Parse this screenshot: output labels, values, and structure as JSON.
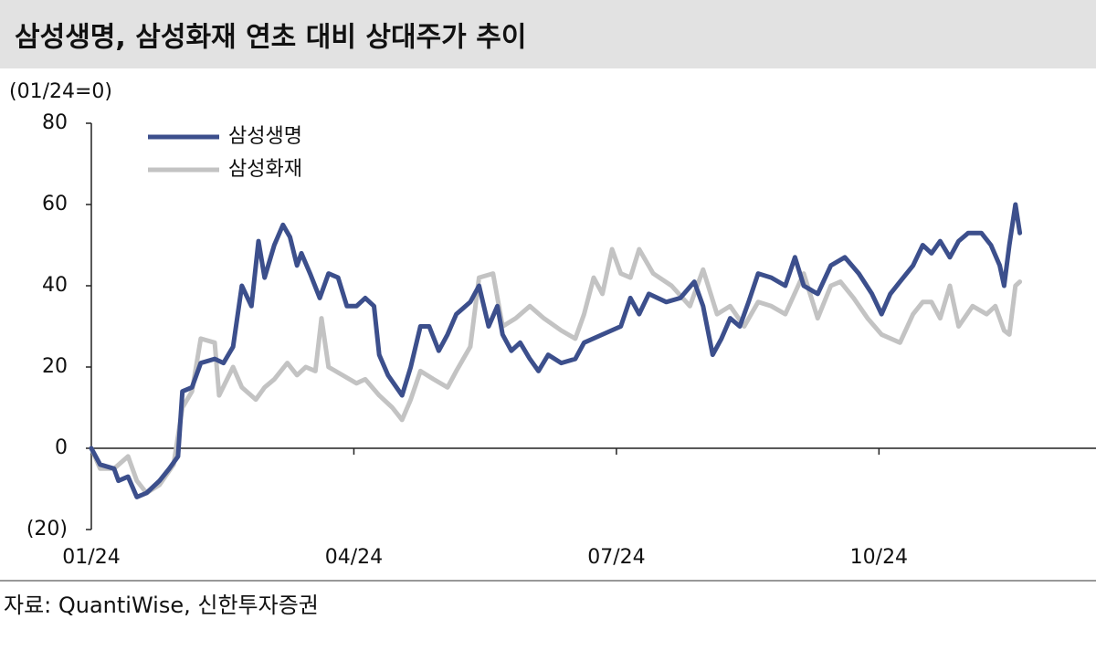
{
  "chart_data": {
    "type": "line",
    "title": "삼성생명, 삼성화재 연초 대비 상대주가 추이",
    "y_label": "(01/24=0)",
    "source": "자료: QuantiWise, 신한투자증권",
    "legend": "upper left",
    "xlim": [
      0,
      11.48
    ],
    "xticks": [
      {
        "value": 0,
        "label": "01/24"
      },
      {
        "value": 3,
        "label": "04/24"
      },
      {
        "value": 6,
        "label": "07/24"
      },
      {
        "value": 9,
        "label": "10/24"
      }
    ],
    "ylim": [
      -20,
      80
    ],
    "yticks": [
      {
        "value": -20,
        "label": "(20)"
      },
      0,
      20,
      40,
      60,
      80
    ],
    "series": [
      {
        "name": "삼성생명",
        "color": "#3c4f8c",
        "x": [
          0,
          0.1,
          0.26,
          0.31,
          0.42,
          0.52,
          0.63,
          0.78,
          0.89,
          0.99,
          1.04,
          1.15,
          1.25,
          1.41,
          1.51,
          1.62,
          1.72,
          1.83,
          1.91,
          1.98,
          2.09,
          2.19,
          2.27,
          2.35,
          2.4,
          2.5,
          2.61,
          2.71,
          2.82,
          2.92,
          3.03,
          3.13,
          3.23,
          3.29,
          3.39,
          3.55,
          3.65,
          3.76,
          3.86,
          3.97,
          4.07,
          4.17,
          4.33,
          4.43,
          4.54,
          4.64,
          4.7,
          4.8,
          4.9,
          5.01,
          5.11,
          5.22,
          5.37,
          5.53,
          5.63,
          5.84,
          6.05,
          6.16,
          6.26,
          6.37,
          6.57,
          6.73,
          6.89,
          6.99,
          7.1,
          7.2,
          7.3,
          7.41,
          7.51,
          7.62,
          7.77,
          7.93,
          8.04,
          8.14,
          8.3,
          8.45,
          8.61,
          8.77,
          8.92,
          9.03,
          9.13,
          9.24,
          9.39,
          9.5,
          9.6,
          9.7,
          9.81,
          9.91,
          10.02,
          10.17,
          10.28,
          10.38,
          10.43,
          10.49,
          10.56,
          10.61
        ],
        "values": [
          0,
          -4,
          -5,
          -8,
          -7,
          -12,
          -11,
          -8,
          -5,
          -2,
          14,
          15,
          21,
          22,
          21,
          25,
          40,
          35,
          51,
          42,
          50,
          55,
          52,
          45,
          48,
          43,
          37,
          43,
          42,
          35,
          35,
          37,
          35,
          23,
          18,
          13,
          20,
          30,
          30,
          24,
          28,
          33,
          36,
          40,
          30,
          35,
          28,
          24,
          26,
          22,
          19,
          23,
          21,
          22,
          26,
          28,
          30,
          37,
          33,
          38,
          36,
          37,
          41,
          35,
          23,
          27,
          32,
          30,
          36,
          43,
          42,
          40,
          47,
          40,
          38,
          45,
          47,
          43,
          38,
          33,
          38,
          41,
          45,
          50,
          48,
          51,
          47,
          51,
          53,
          53,
          50,
          45,
          40,
          50,
          60,
          53
        ]
      },
      {
        "name": "삼성화재",
        "color": "#c3c3c3",
        "x": [
          0,
          0.1,
          0.26,
          0.42,
          0.52,
          0.63,
          0.78,
          0.94,
          1.04,
          1.15,
          1.25,
          1.41,
          1.46,
          1.62,
          1.72,
          1.88,
          1.98,
          2.09,
          2.24,
          2.35,
          2.45,
          2.56,
          2.63,
          2.71,
          2.87,
          3.03,
          3.13,
          3.29,
          3.44,
          3.55,
          3.65,
          3.76,
          3.91,
          4.07,
          4.17,
          4.33,
          4.43,
          4.59,
          4.7,
          4.85,
          5.01,
          5.17,
          5.37,
          5.53,
          5.63,
          5.74,
          5.84,
          5.95,
          6.05,
          6.16,
          6.26,
          6.42,
          6.63,
          6.84,
          6.99,
          7.15,
          7.3,
          7.46,
          7.62,
          7.77,
          7.93,
          8.14,
          8.3,
          8.45,
          8.56,
          8.71,
          8.87,
          9.03,
          9.24,
          9.39,
          9.5,
          9.6,
          9.7,
          9.81,
          9.91,
          10.07,
          10.23,
          10.33,
          10.43,
          10.49,
          10.56,
          10.61
        ],
        "values": [
          0,
          -5,
          -5,
          -2,
          -8,
          -11,
          -9,
          -4,
          10,
          14,
          27,
          26,
          13,
          20,
          15,
          12,
          15,
          17,
          21,
          18,
          20,
          19,
          32,
          20,
          18,
          16,
          17,
          13,
          10,
          7,
          12,
          19,
          17,
          15,
          19,
          25,
          42,
          43,
          30,
          32,
          35,
          32,
          29,
          27,
          33,
          42,
          38,
          49,
          43,
          42,
          49,
          43,
          40,
          35,
          44,
          33,
          35,
          30,
          36,
          35,
          33,
          43,
          32,
          40,
          41,
          37,
          32,
          28,
          26,
          33,
          36,
          36,
          32,
          40,
          30,
          35,
          33,
          35,
          29,
          28,
          40,
          41
        ]
      }
    ]
  }
}
